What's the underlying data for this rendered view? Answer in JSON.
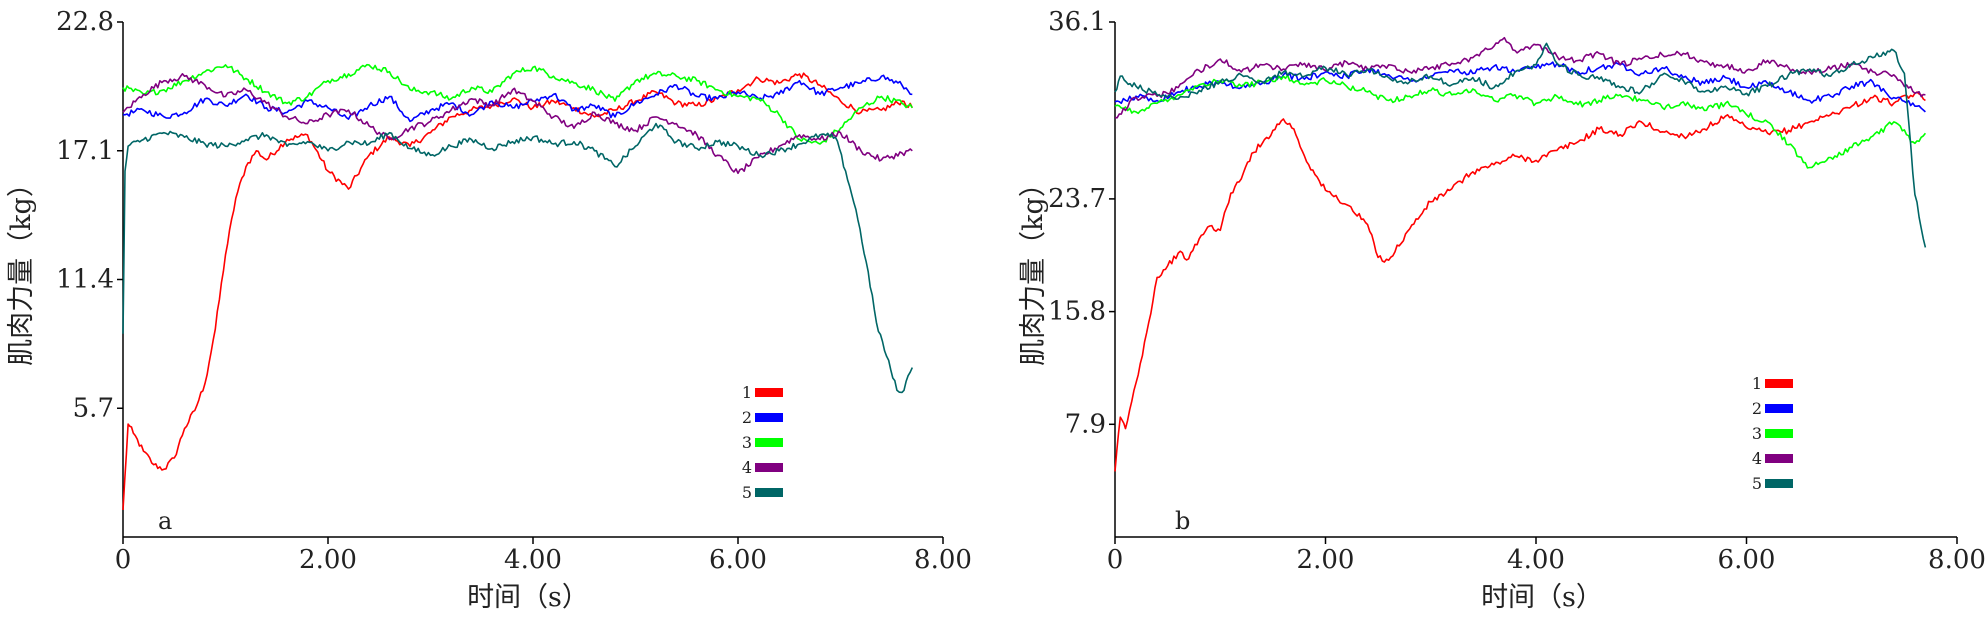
{
  "chart_data": [
    {
      "type": "line",
      "panel_label": "a",
      "xlabel": "时间（s）",
      "ylabel": "肌肉力量（kg）",
      "xlim": [
        0,
        8.0
      ],
      "ylim": [
        0,
        22.8
      ],
      "x_ticks": [
        "0",
        "2.00",
        "4.00",
        "6.00",
        "8.00"
      ],
      "y_ticks": [
        "5.7",
        "11.4",
        "17.1",
        "22.8"
      ],
      "legend_position": "lower-right",
      "series": [
        {
          "name": "1",
          "color": "#ff0000",
          "x": [
            0.0,
            0.05,
            0.1,
            0.2,
            0.3,
            0.4,
            0.5,
            0.6,
            0.7,
            0.8,
            0.9,
            1.0,
            1.1,
            1.2,
            1.3,
            1.4,
            1.6,
            1.8,
            2.0,
            2.2,
            2.4,
            2.6,
            2.8,
            3.0,
            3.2,
            3.4,
            3.6,
            3.8,
            4.0,
            4.2,
            4.4,
            4.6,
            4.8,
            5.0,
            5.2,
            5.4,
            5.6,
            5.8,
            6.0,
            6.2,
            6.4,
            6.6,
            6.8,
            7.0,
            7.2,
            7.4,
            7.6,
            7.7
          ],
          "y": [
            1.2,
            5.0,
            4.6,
            3.8,
            3.2,
            3.0,
            3.5,
            4.8,
            5.6,
            6.8,
            9.2,
            12.5,
            15.0,
            16.4,
            17.1,
            16.7,
            17.6,
            17.8,
            16.2,
            15.4,
            16.9,
            17.7,
            17.3,
            17.9,
            18.6,
            18.9,
            19.1,
            19.4,
            19.0,
            19.3,
            19.0,
            18.6,
            18.9,
            19.3,
            19.7,
            19.2,
            19.1,
            19.4,
            19.8,
            20.3,
            20.1,
            20.5,
            20.0,
            19.3,
            18.8,
            18.9,
            19.3,
            19.0
          ]
        },
        {
          "name": "2",
          "color": "#0000ff",
          "x": [
            0.0,
            0.2,
            0.4,
            0.6,
            0.8,
            1.0,
            1.2,
            1.4,
            1.6,
            1.8,
            2.0,
            2.2,
            2.4,
            2.6,
            2.8,
            3.0,
            3.2,
            3.4,
            3.6,
            3.8,
            4.0,
            4.2,
            4.4,
            4.6,
            4.8,
            5.0,
            5.2,
            5.4,
            5.6,
            5.8,
            6.0,
            6.2,
            6.4,
            6.6,
            6.8,
            7.0,
            7.2,
            7.4,
            7.6,
            7.7
          ],
          "y": [
            18.7,
            18.9,
            18.6,
            18.8,
            19.4,
            19.1,
            19.6,
            19.0,
            18.8,
            19.3,
            19.0,
            18.5,
            19.1,
            19.5,
            18.4,
            18.9,
            19.2,
            18.7,
            19.3,
            19.0,
            19.3,
            19.6,
            18.9,
            19.1,
            18.6,
            19.2,
            19.6,
            20.0,
            19.5,
            19.4,
            19.7,
            19.4,
            19.6,
            20.2,
            19.6,
            19.9,
            20.1,
            20.4,
            20.0,
            19.6
          ]
        },
        {
          "name": "3",
          "color": "#00ff00",
          "x": [
            0.0,
            0.2,
            0.4,
            0.6,
            0.8,
            1.0,
            1.2,
            1.4,
            1.6,
            1.8,
            2.0,
            2.2,
            2.4,
            2.6,
            2.8,
            3.0,
            3.2,
            3.4,
            3.6,
            3.8,
            4.0,
            4.2,
            4.4,
            4.6,
            4.8,
            5.0,
            5.2,
            5.4,
            5.6,
            5.8,
            6.0,
            6.2,
            6.4,
            6.6,
            6.8,
            7.0,
            7.2,
            7.4,
            7.6,
            7.7
          ],
          "y": [
            19.9,
            19.6,
            19.8,
            20.2,
            20.6,
            20.9,
            20.3,
            19.7,
            19.2,
            19.5,
            20.2,
            20.5,
            20.9,
            20.6,
            19.8,
            19.7,
            19.4,
            19.9,
            19.7,
            20.5,
            20.8,
            20.4,
            20.1,
            19.8,
            19.3,
            20.2,
            20.5,
            20.4,
            20.2,
            19.8,
            19.5,
            19.4,
            18.7,
            17.6,
            17.4,
            18.1,
            19.0,
            19.5,
            19.2,
            19.0
          ]
        },
        {
          "name": "4",
          "color": "#800080",
          "x": [
            0.0,
            0.2,
            0.4,
            0.6,
            0.8,
            1.0,
            1.2,
            1.4,
            1.6,
            1.8,
            2.0,
            2.2,
            2.4,
            2.6,
            2.8,
            3.0,
            3.2,
            3.4,
            3.6,
            3.8,
            4.0,
            4.2,
            4.4,
            4.6,
            4.8,
            5.0,
            5.2,
            5.4,
            5.6,
            5.8,
            6.0,
            6.2,
            6.4,
            6.6,
            6.8,
            7.0,
            7.2,
            7.4,
            7.6,
            7.7
          ],
          "y": [
            18.8,
            19.6,
            20.2,
            20.4,
            20.0,
            19.5,
            19.8,
            19.2,
            18.6,
            18.3,
            18.7,
            18.9,
            18.2,
            17.6,
            18.1,
            18.4,
            18.9,
            19.4,
            19.1,
            19.8,
            19.3,
            18.6,
            18.1,
            18.8,
            18.3,
            18.0,
            18.6,
            18.3,
            17.8,
            16.9,
            16.1,
            16.8,
            17.3,
            17.8,
            17.6,
            17.9,
            17.1,
            16.7,
            17.0,
            17.1
          ]
        },
        {
          "name": "5",
          "color": "#006666",
          "x": [
            0.0,
            0.02,
            0.05,
            0.2,
            0.4,
            0.6,
            0.8,
            1.0,
            1.2,
            1.4,
            1.6,
            1.8,
            2.0,
            2.2,
            2.4,
            2.6,
            2.8,
            3.0,
            3.2,
            3.4,
            3.6,
            3.8,
            4.0,
            4.2,
            4.4,
            4.6,
            4.8,
            5.0,
            5.2,
            5.4,
            5.6,
            5.8,
            6.0,
            6.2,
            6.4,
            6.6,
            6.8,
            6.95,
            7.05,
            7.15,
            7.25,
            7.35,
            7.45,
            7.55,
            7.6,
            7.7
          ],
          "y": [
            9.0,
            16.2,
            17.3,
            17.6,
            17.9,
            17.7,
            17.4,
            17.3,
            17.6,
            17.8,
            17.3,
            17.5,
            17.1,
            17.5,
            17.4,
            17.9,
            17.2,
            16.9,
            17.3,
            17.6,
            17.2,
            17.5,
            17.7,
            17.4,
            17.5,
            17.1,
            16.4,
            17.3,
            18.3,
            17.5,
            17.2,
            17.5,
            17.3,
            16.9,
            17.1,
            17.4,
            17.8,
            17.7,
            16.2,
            14.5,
            12.2,
            9.5,
            8.0,
            6.5,
            6.4,
            7.5
          ]
        }
      ]
    },
    {
      "type": "line",
      "panel_label": "b",
      "xlabel": "时间（s）",
      "ylabel": "肌肉力量（kg）",
      "xlim": [
        0,
        8.0
      ],
      "ylim": [
        0,
        36.1
      ],
      "x_ticks": [
        "0",
        "2.00",
        "4.00",
        "6.00",
        "8.00"
      ],
      "y_ticks": [
        "7.9",
        "15.8",
        "23.7",
        "36.1"
      ],
      "legend_position": "lower-right",
      "series": [
        {
          "name": "1",
          "color": "#ff0000",
          "x": [
            0.0,
            0.05,
            0.1,
            0.2,
            0.3,
            0.4,
            0.5,
            0.6,
            0.7,
            0.8,
            0.9,
            1.0,
            1.1,
            1.2,
            1.3,
            1.4,
            1.5,
            1.6,
            1.7,
            1.8,
            1.9,
            2.0,
            2.2,
            2.4,
            2.5,
            2.6,
            2.8,
            3.0,
            3.2,
            3.4,
            3.6,
            3.8,
            4.0,
            4.2,
            4.4,
            4.6,
            4.8,
            5.0,
            5.2,
            5.4,
            5.6,
            5.8,
            6.0,
            6.2,
            6.4,
            6.6,
            6.8,
            7.0,
            7.2,
            7.4,
            7.6,
            7.7
          ],
          "y": [
            4.6,
            8.4,
            7.6,
            10.8,
            14.3,
            18.2,
            19.0,
            19.9,
            19.5,
            20.9,
            21.8,
            21.5,
            24.1,
            25.1,
            26.9,
            27.6,
            28.5,
            29.3,
            28.6,
            26.7,
            25.4,
            24.3,
            23.3,
            21.9,
            19.6,
            19.4,
            21.6,
            23.5,
            24.4,
            25.6,
            26.1,
            26.7,
            26.4,
            27.1,
            27.7,
            28.6,
            28.2,
            29.1,
            28.4,
            28.1,
            28.6,
            29.5,
            28.7,
            28.3,
            28.5,
            29.1,
            29.6,
            30.2,
            30.8,
            30.4,
            31.1,
            30.6
          ]
        },
        {
          "name": "2",
          "color": "#0000ff",
          "x": [
            0.0,
            0.2,
            0.4,
            0.6,
            0.8,
            1.0,
            1.2,
            1.4,
            1.6,
            1.8,
            2.0,
            2.2,
            2.4,
            2.6,
            2.8,
            3.0,
            3.2,
            3.4,
            3.6,
            3.8,
            4.0,
            4.2,
            4.4,
            4.6,
            4.8,
            5.0,
            5.2,
            5.4,
            5.6,
            5.8,
            6.0,
            6.2,
            6.4,
            6.6,
            6.8,
            7.0,
            7.2,
            7.4,
            7.6,
            7.7
          ],
          "y": [
            30.5,
            30.9,
            30.6,
            31.2,
            31.6,
            31.9,
            31.5,
            31.8,
            32.4,
            32.1,
            32.6,
            32.3,
            32.8,
            32.4,
            32.0,
            32.3,
            32.7,
            32.5,
            33.0,
            32.6,
            32.9,
            33.2,
            32.6,
            32.9,
            33.1,
            32.5,
            32.9,
            32.2,
            31.8,
            32.2,
            31.5,
            31.8,
            31.2,
            30.6,
            30.9,
            31.6,
            31.9,
            30.8,
            30.2,
            29.8
          ]
        },
        {
          "name": "3",
          "color": "#00ff00",
          "x": [
            0.0,
            0.2,
            0.4,
            0.6,
            0.8,
            1.0,
            1.2,
            1.4,
            1.6,
            1.8,
            2.0,
            2.2,
            2.4,
            2.6,
            2.8,
            3.0,
            3.2,
            3.4,
            3.6,
            3.8,
            4.0,
            4.2,
            4.4,
            4.6,
            4.8,
            5.0,
            5.2,
            5.4,
            5.6,
            5.8,
            6.0,
            6.2,
            6.4,
            6.6,
            6.8,
            7.0,
            7.2,
            7.4,
            7.6,
            7.7
          ],
          "y": [
            30.2,
            29.8,
            30.4,
            31.0,
            31.7,
            32.0,
            31.6,
            31.9,
            32.3,
            31.7,
            32.0,
            31.6,
            31.2,
            30.6,
            30.9,
            31.3,
            31.0,
            31.4,
            30.6,
            31.0,
            30.4,
            30.9,
            30.3,
            30.6,
            31.0,
            30.6,
            30.1,
            30.5,
            29.9,
            30.4,
            29.6,
            29.1,
            27.5,
            25.9,
            26.6,
            27.3,
            28.1,
            29.1,
            27.6,
            28.3
          ]
        },
        {
          "name": "4",
          "color": "#800080",
          "x": [
            0.0,
            0.2,
            0.4,
            0.6,
            0.8,
            1.0,
            1.2,
            1.4,
            1.6,
            1.8,
            2.0,
            2.2,
            2.4,
            2.6,
            2.8,
            3.0,
            3.2,
            3.4,
            3.6,
            3.7,
            3.8,
            4.0,
            4.2,
            4.4,
            4.6,
            4.8,
            5.0,
            5.2,
            5.4,
            5.6,
            5.8,
            6.0,
            6.2,
            6.4,
            6.6,
            6.8,
            7.0,
            7.2,
            7.4,
            7.6,
            7.7
          ],
          "y": [
            29.4,
            30.8,
            30.9,
            31.5,
            32.7,
            33.5,
            32.6,
            33.1,
            32.8,
            33.2,
            32.7,
            33.3,
            32.8,
            33.1,
            32.6,
            32.9,
            33.2,
            33.6,
            34.4,
            35.0,
            34.1,
            34.5,
            33.7,
            33.4,
            33.9,
            33.1,
            33.5,
            33.8,
            33.9,
            33.3,
            33.0,
            32.7,
            33.4,
            32.9,
            32.6,
            32.8,
            33.2,
            32.6,
            32.4,
            31.1,
            31.0
          ]
        },
        {
          "name": "5",
          "color": "#006666",
          "x": [
            0.0,
            0.05,
            0.2,
            0.4,
            0.6,
            0.8,
            1.0,
            1.2,
            1.4,
            1.6,
            1.8,
            2.0,
            2.2,
            2.4,
            2.6,
            2.8,
            3.0,
            3.2,
            3.4,
            3.6,
            3.8,
            4.0,
            4.1,
            4.2,
            4.4,
            4.6,
            4.8,
            5.0,
            5.2,
            5.4,
            5.6,
            5.8,
            6.0,
            6.2,
            6.4,
            6.6,
            6.8,
            7.0,
            7.2,
            7.4,
            7.5,
            7.6,
            7.7
          ],
          "y": [
            31.2,
            32.3,
            31.6,
            31.0,
            30.7,
            31.3,
            31.9,
            32.4,
            31.9,
            32.6,
            32.3,
            32.9,
            32.4,
            32.8,
            32.2,
            31.9,
            32.3,
            31.7,
            32.2,
            31.5,
            32.6,
            33.1,
            34.6,
            33.2,
            32.4,
            32.1,
            31.5,
            31.2,
            32.4,
            32.0,
            31.2,
            31.6,
            31.1,
            31.6,
            32.4,
            32.8,
            32.3,
            33.1,
            33.6,
            34.1,
            32.5,
            24.0,
            20.3
          ]
        }
      ]
    }
  ]
}
